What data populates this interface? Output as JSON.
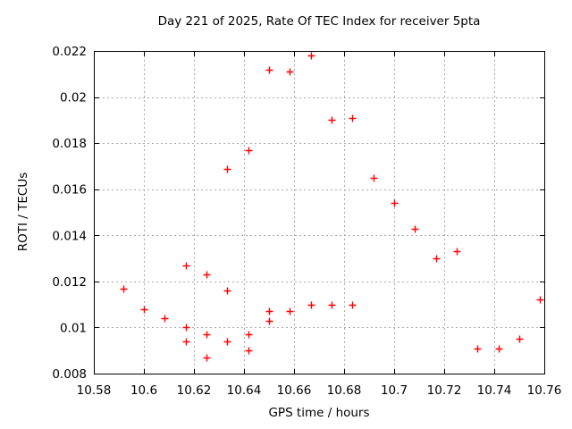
{
  "colors": {
    "marker": "#ff0000",
    "grid": "#a9a9a9",
    "axis": "#000000",
    "background": "#ffffff",
    "text": "#000000"
  },
  "chart_data": {
    "type": "scatter",
    "title": "Day 221 of 2025, Rate Of TEC Index for receiver 5pta",
    "xlabel": "GPS time / hours",
    "ylabel": "ROTI / TECUs",
    "xlim": [
      10.58,
      10.76
    ],
    "ylim": [
      0.008,
      0.022
    ],
    "grid": true,
    "legend": "none",
    "marker": {
      "shape": "plus",
      "color": "#ff0000",
      "size": 9
    },
    "x_ticks": [
      10.58,
      10.6,
      10.62,
      10.64,
      10.66,
      10.68,
      10.7,
      10.72,
      10.74,
      10.76
    ],
    "x_tick_labels": [
      "10.58",
      "10.6",
      "10.62",
      "10.64",
      "10.66",
      "10.68",
      "10.7",
      "10.72",
      "10.74",
      "10.76"
    ],
    "y_ticks": [
      0.008,
      0.01,
      0.012,
      0.014,
      0.016,
      0.018,
      0.02,
      0.022
    ],
    "y_tick_labels": [
      "0.008",
      "0.01",
      "0.012",
      "0.014",
      "0.016",
      "0.018",
      "0.02",
      "0.022"
    ],
    "points": [
      [
        10.5917,
        0.0117
      ],
      [
        10.6,
        0.0108
      ],
      [
        10.6083,
        0.0104
      ],
      [
        10.6167,
        0.0127
      ],
      [
        10.6167,
        0.01
      ],
      [
        10.6167,
        0.0094
      ],
      [
        10.625,
        0.0123
      ],
      [
        10.625,
        0.0097
      ],
      [
        10.625,
        0.0087
      ],
      [
        10.6333,
        0.0169
      ],
      [
        10.6333,
        0.0116
      ],
      [
        10.6333,
        0.0094
      ],
      [
        10.6417,
        0.0177
      ],
      [
        10.6417,
        0.0097
      ],
      [
        10.6417,
        0.009
      ],
      [
        10.65,
        0.0212
      ],
      [
        10.65,
        0.0107
      ],
      [
        10.65,
        0.0103
      ],
      [
        10.6583,
        0.0211
      ],
      [
        10.6583,
        0.0107
      ],
      [
        10.6667,
        0.0218
      ],
      [
        10.6667,
        0.011
      ],
      [
        10.675,
        0.019
      ],
      [
        10.675,
        0.011
      ],
      [
        10.6833,
        0.0191
      ],
      [
        10.6833,
        0.011
      ],
      [
        10.6917,
        0.0165
      ],
      [
        10.7,
        0.0154
      ],
      [
        10.7083,
        0.0143
      ],
      [
        10.7167,
        0.013
      ],
      [
        10.725,
        0.0133
      ],
      [
        10.7333,
        0.0091
      ],
      [
        10.7417,
        0.0091
      ],
      [
        10.75,
        0.0095
      ],
      [
        10.7583,
        0.0112
      ]
    ]
  }
}
